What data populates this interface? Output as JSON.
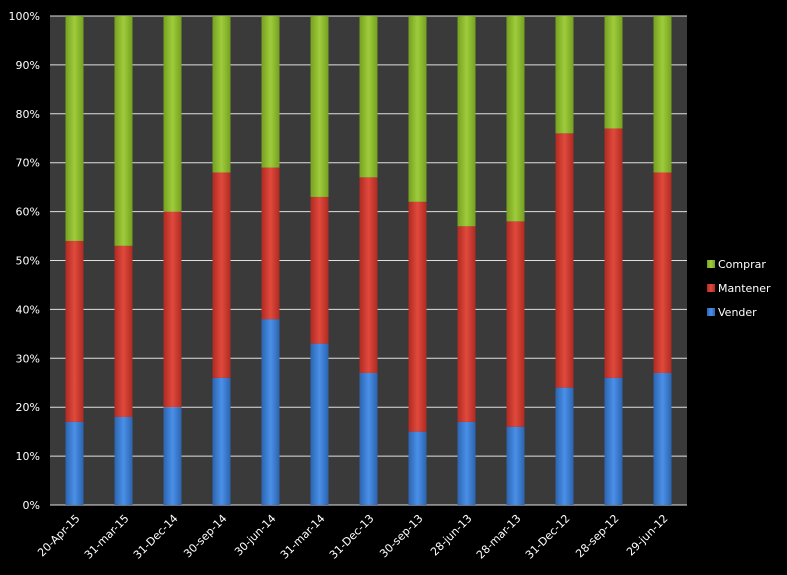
{
  "chart_data": {
    "type": "bar",
    "stacked": "100%",
    "title": "",
    "xlabel": "",
    "ylabel": "",
    "ylim": [
      0,
      100
    ],
    "yticks": [
      "0%",
      "10%",
      "20%",
      "30%",
      "40%",
      "50%",
      "60%",
      "70%",
      "80%",
      "90%",
      "100%"
    ],
    "grid": true,
    "legend_position": "right",
    "categories": [
      "20-Apr-15",
      "31-mar-15",
      "31-Dec-14",
      "30-sep-14",
      "30-jun-14",
      "31-mar-14",
      "31-Dec-13",
      "30-sep-13",
      "28-jun-13",
      "28-mar-13",
      "31-Dec-12",
      "28-sep-12",
      "29-jun-12"
    ],
    "series": [
      {
        "name": "Vender",
        "color": "#3a7fd5",
        "values": [
          17,
          18,
          20,
          26,
          38,
          33,
          27,
          15,
          17,
          16,
          24,
          26,
          27
        ]
      },
      {
        "name": "Mantener",
        "color": "#d63a2f",
        "values": [
          37,
          35,
          40,
          42,
          31,
          30,
          40,
          47,
          40,
          42,
          52,
          51,
          41
        ]
      },
      {
        "name": "Comprar",
        "color": "#8dbb2c",
        "values": [
          46,
          47,
          40,
          32,
          31,
          37,
          33,
          38,
          43,
          42,
          24,
          23,
          32
        ]
      }
    ],
    "legend_order": [
      "Comprar",
      "Mantener",
      "Vender"
    ]
  }
}
